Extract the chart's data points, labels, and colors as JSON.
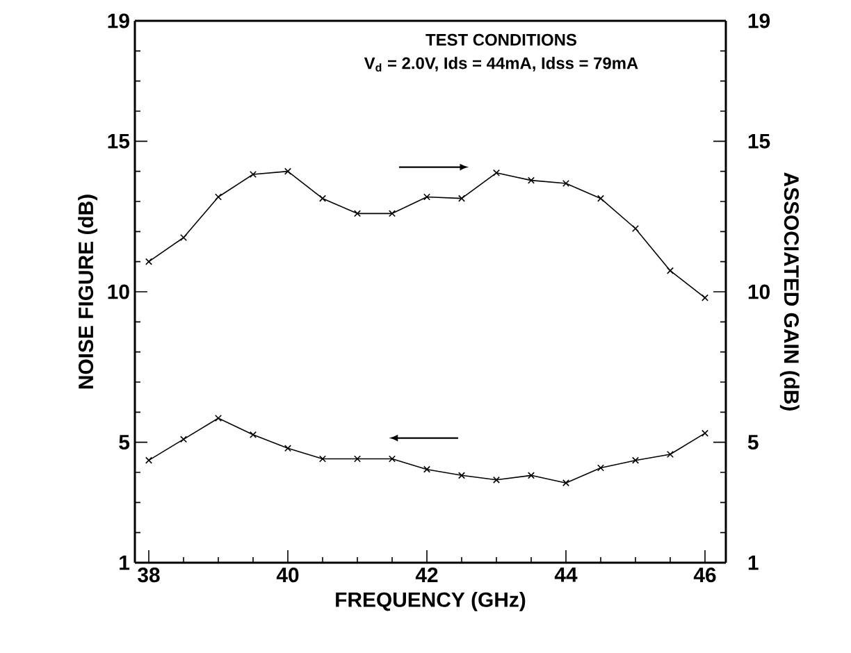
{
  "chart_data": {
    "type": "line",
    "xlabel": "FREQUENCY (GHz)",
    "ylabel": "NOISE FIGURE (dB)",
    "y2label": "ASSOCIATED GAIN (dB)",
    "annotations": [
      "TEST CONDITIONS",
      "V$_{d}$ = 2.0V, Ids = 44mA, Idss = 79mA"
    ],
    "x": [
      38,
      38.5,
      39,
      39.5,
      40,
      40.5,
      41,
      41.5,
      42,
      42.5,
      43,
      43.5,
      44,
      44.5,
      45,
      45.5,
      46
    ],
    "xlim": [
      37.8,
      46.3
    ],
    "xticks": [
      38,
      40,
      42,
      44,
      46
    ],
    "ylim": [
      1,
      19
    ],
    "yticks": [
      1,
      5,
      10,
      15,
      19
    ],
    "y2lim": [
      1,
      19
    ],
    "y2ticks": [
      1,
      5,
      10,
      15,
      19
    ],
    "marker": "cross",
    "line_style": "solid",
    "grid": false,
    "series": [
      {
        "color": "#000000",
        "values": [
          4.4,
          5.1,
          5.8,
          5.25,
          4.8,
          4.45,
          4.45,
          4.45,
          4.1,
          3.9,
          3.75,
          3.9,
          3.65,
          4.15,
          4.4,
          4.6,
          5.3
        ]
      },
      {
        "color": "#000000",
        "axis": "y2",
        "values": [
          11.0,
          11.8,
          13.15,
          13.9,
          14.0,
          13.1,
          12.6,
          12.6,
          13.15,
          13.1,
          13.95,
          13.7,
          13.6,
          13.1,
          12.1,
          10.7,
          9.8
        ]
      }
    ]
  }
}
